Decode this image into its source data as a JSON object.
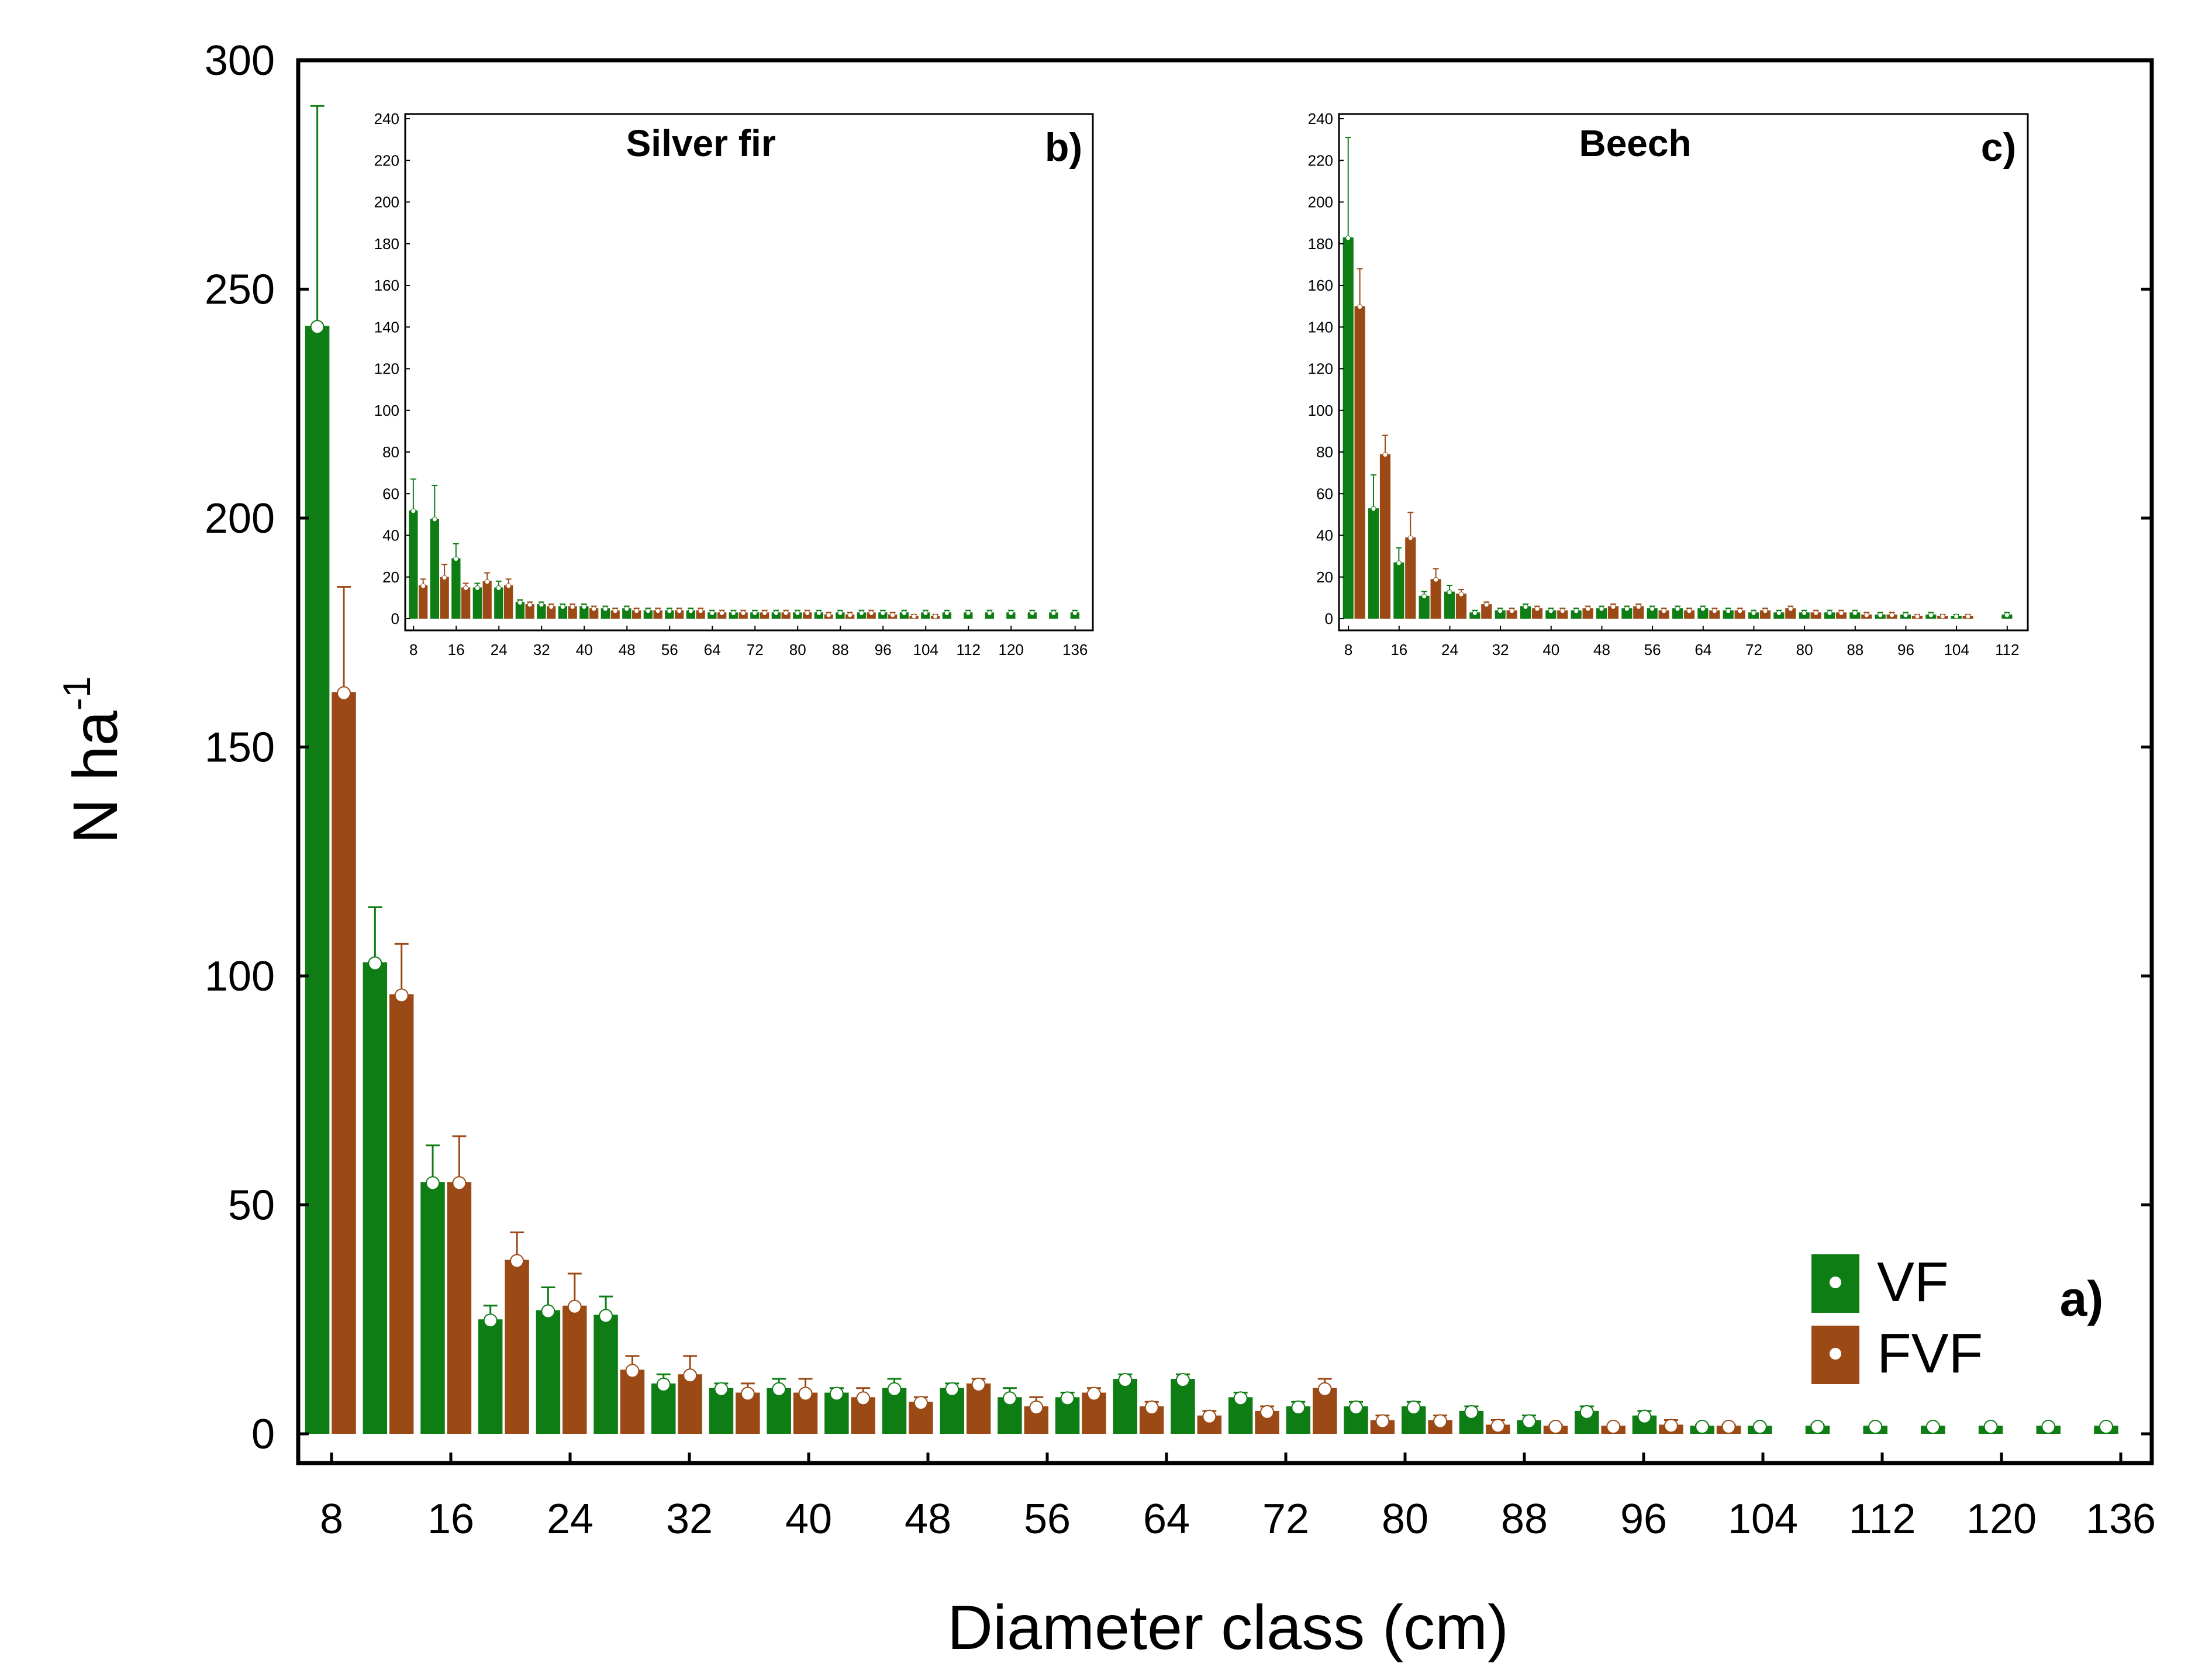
{
  "colors": {
    "vf": "#0e7d14",
    "fvf": "#9b4a16",
    "error_bar_vf": "#0e7d14",
    "error_bar_fvf": "#9b4a16",
    "axis": "#000000",
    "marker": "#ffffff"
  },
  "chart_data": [
    {
      "id": "a",
      "type": "bar",
      "panel_label": "a)",
      "title": "",
      "xlabel": "Diameter class (cm)",
      "ylabel": "N ha",
      "ylabel_superscript": "-1",
      "ylim": [
        0,
        300
      ],
      "yticks": [
        0,
        50,
        100,
        150,
        200,
        250,
        300
      ],
      "xtick_labels": [
        "8",
        "16",
        "24",
        "32",
        "40",
        "48",
        "56",
        "64",
        "72",
        "80",
        "88",
        "96",
        "104",
        "112",
        "120",
        "136"
      ],
      "legend": {
        "position": "right",
        "entries": [
          "VF",
          "FVF"
        ]
      },
      "categories": [
        "8",
        "12",
        "16",
        "20",
        "24",
        "28",
        "32",
        "36",
        "40",
        "44",
        "48",
        "52",
        "56",
        "60",
        "64",
        "68",
        "72",
        "76",
        "80",
        "84",
        "88",
        "92",
        "96",
        "100",
        "104",
        "108",
        "112",
        "116",
        "120",
        "124",
        "128",
        "136"
      ],
      "series": [
        {
          "name": "VF",
          "values": [
            242,
            103,
            55,
            25,
            27,
            26,
            11,
            10,
            10,
            9,
            10,
            10,
            8,
            8,
            12,
            12,
            8,
            6,
            6,
            6,
            5,
            3,
            5,
            4,
            1,
            0,
            1,
            0,
            0,
            0,
            0,
            0
          ],
          "errors": [
            48,
            12,
            8,
            3,
            5,
            4,
            2,
            1,
            2,
            1,
            2,
            1,
            2,
            1,
            1,
            1,
            1,
            1,
            1,
            1,
            1,
            1,
            1,
            1,
            1,
            1,
            1,
            1,
            1,
            1,
            1,
            1
          ]
        },
        {
          "name": "FVF",
          "values": [
            162,
            96,
            55,
            38,
            28,
            14,
            13,
            9,
            9,
            8,
            7,
            11,
            6,
            9,
            6,
            4,
            5,
            10,
            3,
            3,
            2,
            1,
            0,
            2,
            1,
            null,
            null,
            null,
            null,
            null,
            null,
            null
          ],
          "errors": [
            23,
            11,
            10,
            6,
            7,
            3,
            4,
            2,
            3,
            2,
            1,
            1,
            2,
            1,
            1,
            1,
            1,
            2,
            1,
            1,
            1,
            1,
            1,
            1,
            1,
            null,
            null,
            null,
            null,
            null,
            null,
            null
          ]
        }
      ]
    },
    {
      "id": "b",
      "type": "bar",
      "panel_label": "b)",
      "title": "Silver fir",
      "ylim": [
        0,
        240
      ],
      "yticks": [
        0,
        20,
        40,
        60,
        80,
        100,
        120,
        140,
        160,
        180,
        200,
        220,
        240
      ],
      "xtick_labels": [
        "8",
        "16",
        "24",
        "32",
        "40",
        "48",
        "56",
        "64",
        "72",
        "80",
        "88",
        "96",
        "104",
        "112",
        "120",
        "136"
      ],
      "categories": [
        "8",
        "12",
        "16",
        "20",
        "24",
        "28",
        "32",
        "36",
        "40",
        "44",
        "48",
        "52",
        "56",
        "60",
        "64",
        "68",
        "72",
        "76",
        "80",
        "84",
        "88",
        "92",
        "96",
        "100",
        "104",
        "108",
        "112",
        "116",
        "120",
        "124",
        "128",
        "136"
      ],
      "series": [
        {
          "name": "VF",
          "values": [
            52,
            48,
            29,
            15,
            15,
            8,
            7,
            6,
            6,
            5,
            5,
            4,
            4,
            4,
            3,
            3,
            3,
            3,
            3,
            3,
            3,
            3,
            3,
            3,
            3,
            3,
            3,
            3,
            3,
            3,
            3,
            3
          ],
          "errors": [
            15,
            16,
            7,
            2,
            3,
            1,
            1,
            1,
            1,
            1,
            1,
            1,
            1,
            1,
            1,
            1,
            1,
            1,
            1,
            1,
            1,
            1,
            1,
            1,
            1,
            1,
            1,
            1,
            1,
            1,
            1,
            1
          ]
        },
        {
          "name": "FVF",
          "values": [
            16,
            20,
            15,
            18,
            16,
            7,
            6,
            6,
            5,
            4,
            4,
            4,
            4,
            4,
            3,
            3,
            3,
            3,
            3,
            2,
            2,
            3,
            2,
            1,
            1,
            null,
            null,
            null,
            null,
            null,
            null,
            null
          ],
          "errors": [
            3,
            6,
            2,
            4,
            3,
            1,
            1,
            1,
            1,
            1,
            1,
            1,
            1,
            1,
            1,
            1,
            1,
            1,
            1,
            1,
            1,
            1,
            1,
            1,
            1,
            null,
            null,
            null,
            null,
            null,
            null,
            null
          ]
        }
      ]
    },
    {
      "id": "c",
      "type": "bar",
      "panel_label": "c)",
      "title": "Beech",
      "ylim": [
        0,
        240
      ],
      "yticks": [
        0,
        20,
        40,
        60,
        80,
        100,
        120,
        140,
        160,
        180,
        200,
        220,
        240
      ],
      "xtick_labels": [
        "8",
        "16",
        "24",
        "32",
        "40",
        "48",
        "56",
        "64",
        "72",
        "80",
        "88",
        "96",
        "104",
        "112"
      ],
      "categories": [
        "8",
        "12",
        "16",
        "20",
        "24",
        "28",
        "32",
        "36",
        "40",
        "44",
        "48",
        "52",
        "56",
        "60",
        "64",
        "68",
        "72",
        "76",
        "80",
        "84",
        "88",
        "92",
        "96",
        "100",
        "104",
        "108",
        "112"
      ],
      "series": [
        {
          "name": "VF",
          "values": [
            183,
            53,
            27,
            11,
            13,
            3,
            4,
            6,
            4,
            4,
            5,
            5,
            5,
            5,
            5,
            4,
            3,
            3,
            3,
            3,
            3,
            2,
            2,
            2,
            1,
            null,
            2
          ],
          "errors": [
            48,
            16,
            7,
            2,
            3,
            1,
            1,
            1,
            1,
            1,
            1,
            1,
            1,
            1,
            1,
            1,
            1,
            1,
            1,
            1,
            1,
            1,
            1,
            1,
            1,
            null,
            1
          ]
        },
        {
          "name": "FVF",
          "values": [
            150,
            79,
            39,
            19,
            12,
            7,
            4,
            5,
            4,
            5,
            6,
            6,
            4,
            4,
            4,
            4,
            4,
            5,
            3,
            3,
            2,
            2,
            1,
            1,
            1,
            null,
            null
          ],
          "errors": [
            18,
            9,
            12,
            5,
            2,
            1,
            1,
            1,
            1,
            1,
            1,
            1,
            1,
            1,
            1,
            1,
            1,
            1,
            1,
            1,
            1,
            1,
            1,
            1,
            1,
            null,
            null
          ]
        }
      ]
    }
  ]
}
